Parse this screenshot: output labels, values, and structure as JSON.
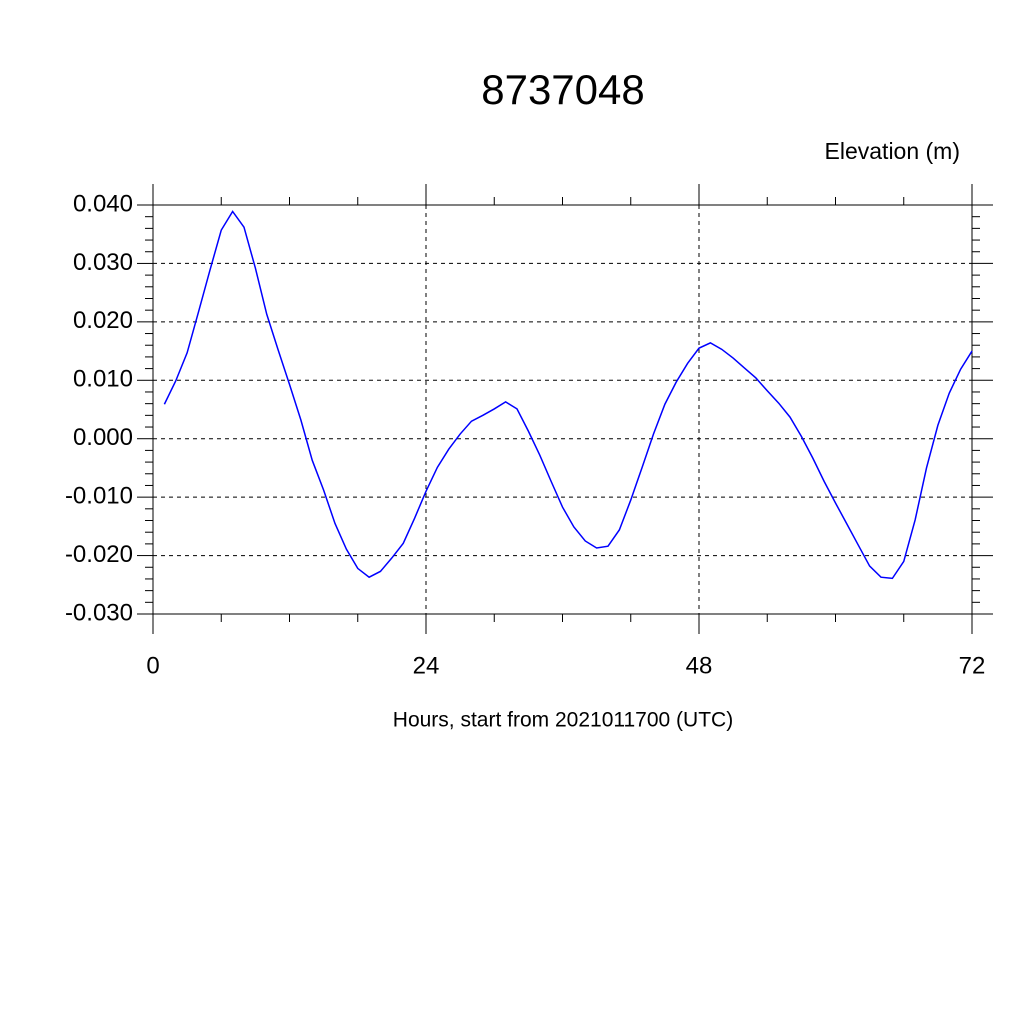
{
  "chart_data": {
    "type": "line",
    "title": "8737048",
    "y_axis_label": "Elevation (m)",
    "x_axis_label": "Hours, start from 2021011700 (UTC)",
    "x": [
      1,
      2,
      3,
      4,
      5,
      6,
      7,
      8,
      9,
      10,
      11,
      12,
      13,
      14,
      15,
      16,
      17,
      18,
      19,
      20,
      21,
      22,
      23,
      24,
      25,
      26,
      27,
      28,
      29,
      30,
      31,
      32,
      33,
      34,
      35,
      36,
      37,
      38,
      39,
      40,
      41,
      42,
      43,
      44,
      45,
      46,
      47,
      48,
      49,
      50,
      51,
      52,
      53,
      54,
      55,
      56,
      57,
      58,
      59,
      60,
      61,
      62,
      63,
      64,
      65,
      66,
      67,
      68,
      69,
      70,
      71,
      72
    ],
    "series": [
      {
        "color": "#0000ff",
        "values": [
          0.0059,
          0.0099,
          0.0147,
          0.0217,
          0.0288,
          0.0357,
          0.0389,
          0.0362,
          0.0292,
          0.0213,
          0.0152,
          0.0093,
          0.0032,
          -0.0037,
          -0.0088,
          -0.0145,
          -0.0189,
          -0.0222,
          -0.0237,
          -0.0227,
          -0.0204,
          -0.0179,
          -0.0136,
          -0.009,
          -0.0049,
          -0.0018,
          0.0008,
          0.003,
          0.004,
          0.0051,
          0.0063,
          0.0051,
          0.0013,
          -0.0028,
          -0.0073,
          -0.0117,
          -0.0151,
          -0.0175,
          -0.0187,
          -0.0184,
          -0.0156,
          -0.0105,
          -0.0049,
          0.0008,
          0.0059,
          0.0097,
          0.0129,
          0.0155,
          0.0164,
          0.0153,
          0.0138,
          0.0121,
          0.0104,
          0.0082,
          0.0061,
          0.0037,
          0.0004,
          -0.0033,
          -0.0073,
          -0.011,
          -0.0146,
          -0.0182,
          -0.0218,
          -0.0237,
          -0.0239,
          -0.021,
          -0.0139,
          -0.005,
          0.0023,
          0.0078,
          0.0119,
          0.015
        ]
      }
    ],
    "xlim": [
      0,
      72
    ],
    "xticks": [
      0,
      24,
      48,
      72
    ],
    "ylim": [
      -0.03,
      0.04
    ],
    "yticks": [
      {
        "value": -0.03,
        "label": "-0.030"
      },
      {
        "value": -0.02,
        "label": "-0.020"
      },
      {
        "value": -0.01,
        "label": "-0.010"
      },
      {
        "value": 0,
        "label": "0.000"
      },
      {
        "value": 0.01,
        "label": "0.010"
      },
      {
        "value": 0.02,
        "label": "0.020"
      },
      {
        "value": 0.03,
        "label": "0.030"
      },
      {
        "value": 0.04,
        "label": "0.040"
      }
    ],
    "grid": true
  }
}
